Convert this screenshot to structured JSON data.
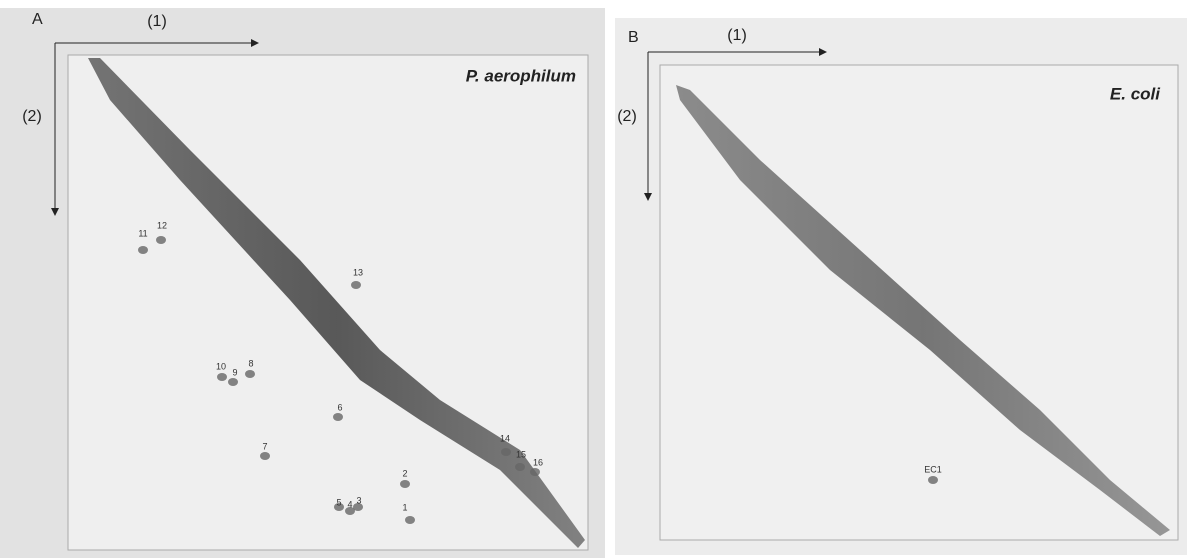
{
  "panels": [
    {
      "label": "A",
      "axis1": "(1)",
      "axis2": "(2)",
      "organism": "P. aerophilum",
      "spots": [
        {
          "label": "11"
        },
        {
          "label": "12"
        },
        {
          "label": "13"
        },
        {
          "label": "10"
        },
        {
          "label": "9"
        },
        {
          "label": "8"
        },
        {
          "label": "6"
        },
        {
          "label": "7"
        },
        {
          "label": "14"
        },
        {
          "label": "15"
        },
        {
          "label": "16"
        },
        {
          "label": "2"
        },
        {
          "label": "5"
        },
        {
          "label": "4"
        },
        {
          "label": "3"
        },
        {
          "label": "1"
        }
      ]
    },
    {
      "label": "B",
      "axis1": "(1)",
      "axis2": "(2)",
      "organism": "E. coli",
      "spots": [
        {
          "label": "EC1"
        }
      ]
    }
  ]
}
